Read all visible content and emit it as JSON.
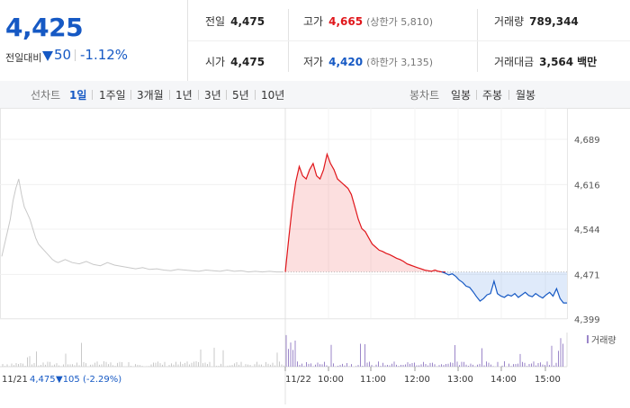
{
  "summary": {
    "price": "4,425",
    "change_label": "전일대비",
    "change_value": "50",
    "change_pct": "-1.12%",
    "prev_close": {
      "label": "전일",
      "value": "4,475"
    },
    "high": {
      "label": "고가",
      "value": "4,665",
      "limit_label": "(상한가 5,810)"
    },
    "volume": {
      "label": "거래량",
      "value": "789,344"
    },
    "open": {
      "label": "시가",
      "value": "4,475"
    },
    "low": {
      "label": "저가",
      "value": "4,420",
      "limit_label": "(하한가 3,135)"
    },
    "amount": {
      "label": "거래대금",
      "value": "3,564",
      "unit": "백만"
    }
  },
  "tabs": {
    "line_chart_label": "선차트",
    "line_items": [
      "1일",
      "1주일",
      "3개월",
      "1년",
      "3년",
      "5년",
      "10년"
    ],
    "candle_chart_label": "봉차트",
    "candle_items": [
      "일봉",
      "주봉",
      "월봉"
    ]
  },
  "colors": {
    "up": "#e0161b",
    "down": "#1659c4",
    "prev_day": "#c8c8c8",
    "volume": "#9b86c9"
  },
  "chart_data": {
    "type": "line",
    "y_ticks": [
      "4,689",
      "4,616",
      "4,544",
      "4,471",
      "4,399"
    ],
    "ylim": [
      4399,
      4689
    ],
    "baseline": 4475,
    "x_ticks": [
      "11/22",
      "10:00",
      "11:00",
      "12:00",
      "13:00",
      "14:00",
      "15:00"
    ],
    "prev_day_label": "11/21",
    "prev_day_close": "4,475",
    "prev_day_change": "▼105 (-2.29%)",
    "volume_legend": "거래량",
    "prev_day_series": [
      [
        0,
        4500
      ],
      [
        2,
        4520
      ],
      [
        4,
        4540
      ],
      [
        6,
        4560
      ],
      [
        8,
        4590
      ],
      [
        10,
        4610
      ],
      [
        12,
        4625
      ],
      [
        14,
        4600
      ],
      [
        16,
        4580
      ],
      [
        18,
        4570
      ],
      [
        20,
        4560
      ],
      [
        22,
        4545
      ],
      [
        24,
        4530
      ],
      [
        26,
        4520
      ],
      [
        28,
        4515
      ],
      [
        30,
        4510
      ],
      [
        32,
        4505
      ],
      [
        34,
        4500
      ],
      [
        36,
        4495
      ],
      [
        38,
        4492
      ],
      [
        40,
        4490
      ],
      [
        45,
        4495
      ],
      [
        50,
        4490
      ],
      [
        55,
        4488
      ],
      [
        60,
        4492
      ],
      [
        65,
        4487
      ],
      [
        70,
        4485
      ],
      [
        75,
        4490
      ],
      [
        80,
        4486
      ],
      [
        85,
        4484
      ],
      [
        90,
        4482
      ],
      [
        95,
        4480
      ],
      [
        100,
        4482
      ],
      [
        105,
        4479
      ],
      [
        110,
        4480
      ],
      [
        115,
        4478
      ],
      [
        120,
        4477
      ],
      [
        125,
        4479
      ],
      [
        130,
        4478
      ],
      [
        135,
        4477
      ],
      [
        140,
        4476
      ],
      [
        145,
        4478
      ],
      [
        150,
        4477
      ],
      [
        155,
        4476
      ],
      [
        160,
        4478
      ],
      [
        165,
        4476
      ],
      [
        170,
        4477
      ],
      [
        175,
        4475
      ],
      [
        180,
        4476
      ],
      [
        185,
        4475
      ],
      [
        190,
        4476
      ],
      [
        195,
        4475
      ],
      [
        200,
        4475
      ]
    ],
    "intraday_series": [
      [
        0,
        4475
      ],
      [
        2,
        4530
      ],
      [
        4,
        4580
      ],
      [
        6,
        4620
      ],
      [
        8,
        4645
      ],
      [
        10,
        4630
      ],
      [
        12,
        4625
      ],
      [
        14,
        4640
      ],
      [
        16,
        4650
      ],
      [
        18,
        4630
      ],
      [
        20,
        4625
      ],
      [
        22,
        4640
      ],
      [
        24,
        4665
      ],
      [
        26,
        4650
      ],
      [
        28,
        4640
      ],
      [
        30,
        4625
      ],
      [
        32,
        4620
      ],
      [
        34,
        4615
      ],
      [
        36,
        4610
      ],
      [
        38,
        4600
      ],
      [
        40,
        4580
      ],
      [
        42,
        4560
      ],
      [
        44,
        4545
      ],
      [
        46,
        4540
      ],
      [
        48,
        4530
      ],
      [
        50,
        4520
      ],
      [
        52,
        4515
      ],
      [
        54,
        4510
      ],
      [
        56,
        4508
      ],
      [
        58,
        4505
      ],
      [
        60,
        4503
      ],
      [
        62,
        4500
      ],
      [
        64,
        4497
      ],
      [
        66,
        4495
      ],
      [
        68,
        4492
      ],
      [
        70,
        4488
      ],
      [
        72,
        4486
      ],
      [
        74,
        4484
      ],
      [
        76,
        4482
      ],
      [
        78,
        4480
      ],
      [
        80,
        4478
      ],
      [
        82,
        4477
      ],
      [
        84,
        4476
      ],
      [
        86,
        4478
      ],
      [
        88,
        4476
      ],
      [
        90,
        4475
      ],
      [
        92,
        4473
      ],
      [
        94,
        4470
      ],
      [
        96,
        4472
      ],
      [
        98,
        4468
      ],
      [
        100,
        4462
      ],
      [
        102,
        4458
      ],
      [
        104,
        4452
      ],
      [
        106,
        4450
      ],
      [
        108,
        4443
      ],
      [
        110,
        4435
      ],
      [
        112,
        4428
      ],
      [
        114,
        4432
      ],
      [
        116,
        4438
      ],
      [
        118,
        4440
      ],
      [
        120,
        4460
      ],
      [
        122,
        4440
      ],
      [
        124,
        4436
      ],
      [
        126,
        4434
      ],
      [
        128,
        4438
      ],
      [
        130,
        4436
      ],
      [
        132,
        4440
      ],
      [
        134,
        4434
      ],
      [
        136,
        4438
      ],
      [
        138,
        4442
      ],
      [
        140,
        4437
      ],
      [
        142,
        4435
      ],
      [
        144,
        4440
      ],
      [
        146,
        4436
      ],
      [
        148,
        4433
      ],
      [
        150,
        4438
      ],
      [
        152,
        4442
      ],
      [
        154,
        4436
      ],
      [
        156,
        4448
      ],
      [
        158,
        4432
      ],
      [
        160,
        4425
      ],
      [
        162,
        4425
      ]
    ]
  }
}
